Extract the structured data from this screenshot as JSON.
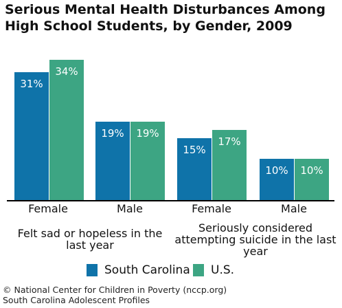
{
  "title": "Serious Mental Health Disturbances Among High School Students, by Gender, 2009",
  "colors": {
    "south_carolina": "#0f73a9",
    "us": "#3da583"
  },
  "chart_data": {
    "type": "bar",
    "title": "Serious Mental Health Disturbances Among High School Students, by Gender, 2009",
    "categories": [
      "Female",
      "Male",
      "Female",
      "Male"
    ],
    "groups": [
      {
        "label": "Felt sad or hopeless in the last year",
        "categories": [
          "Female",
          "Male"
        ]
      },
      {
        "label": "Seriously considered attempting suicide in the last year",
        "categories": [
          "Female",
          "Male"
        ]
      }
    ],
    "series": [
      {
        "name": "South Carolina",
        "values": [
          31,
          19,
          15,
          10
        ],
        "labels": [
          "31%",
          "19%",
          "15%",
          "10%"
        ]
      },
      {
        "name": "U.S.",
        "values": [
          34,
          19,
          17,
          10
        ],
        "labels": [
          "34%",
          "19%",
          "17%",
          "10%"
        ]
      }
    ],
    "ylim": [
      0,
      36
    ],
    "grid": false,
    "legend": "bottom"
  },
  "footer": {
    "line1": "© National Center for Children in Poverty (nccp.org)",
    "line2": "South Carolina Adolescent Profiles"
  }
}
